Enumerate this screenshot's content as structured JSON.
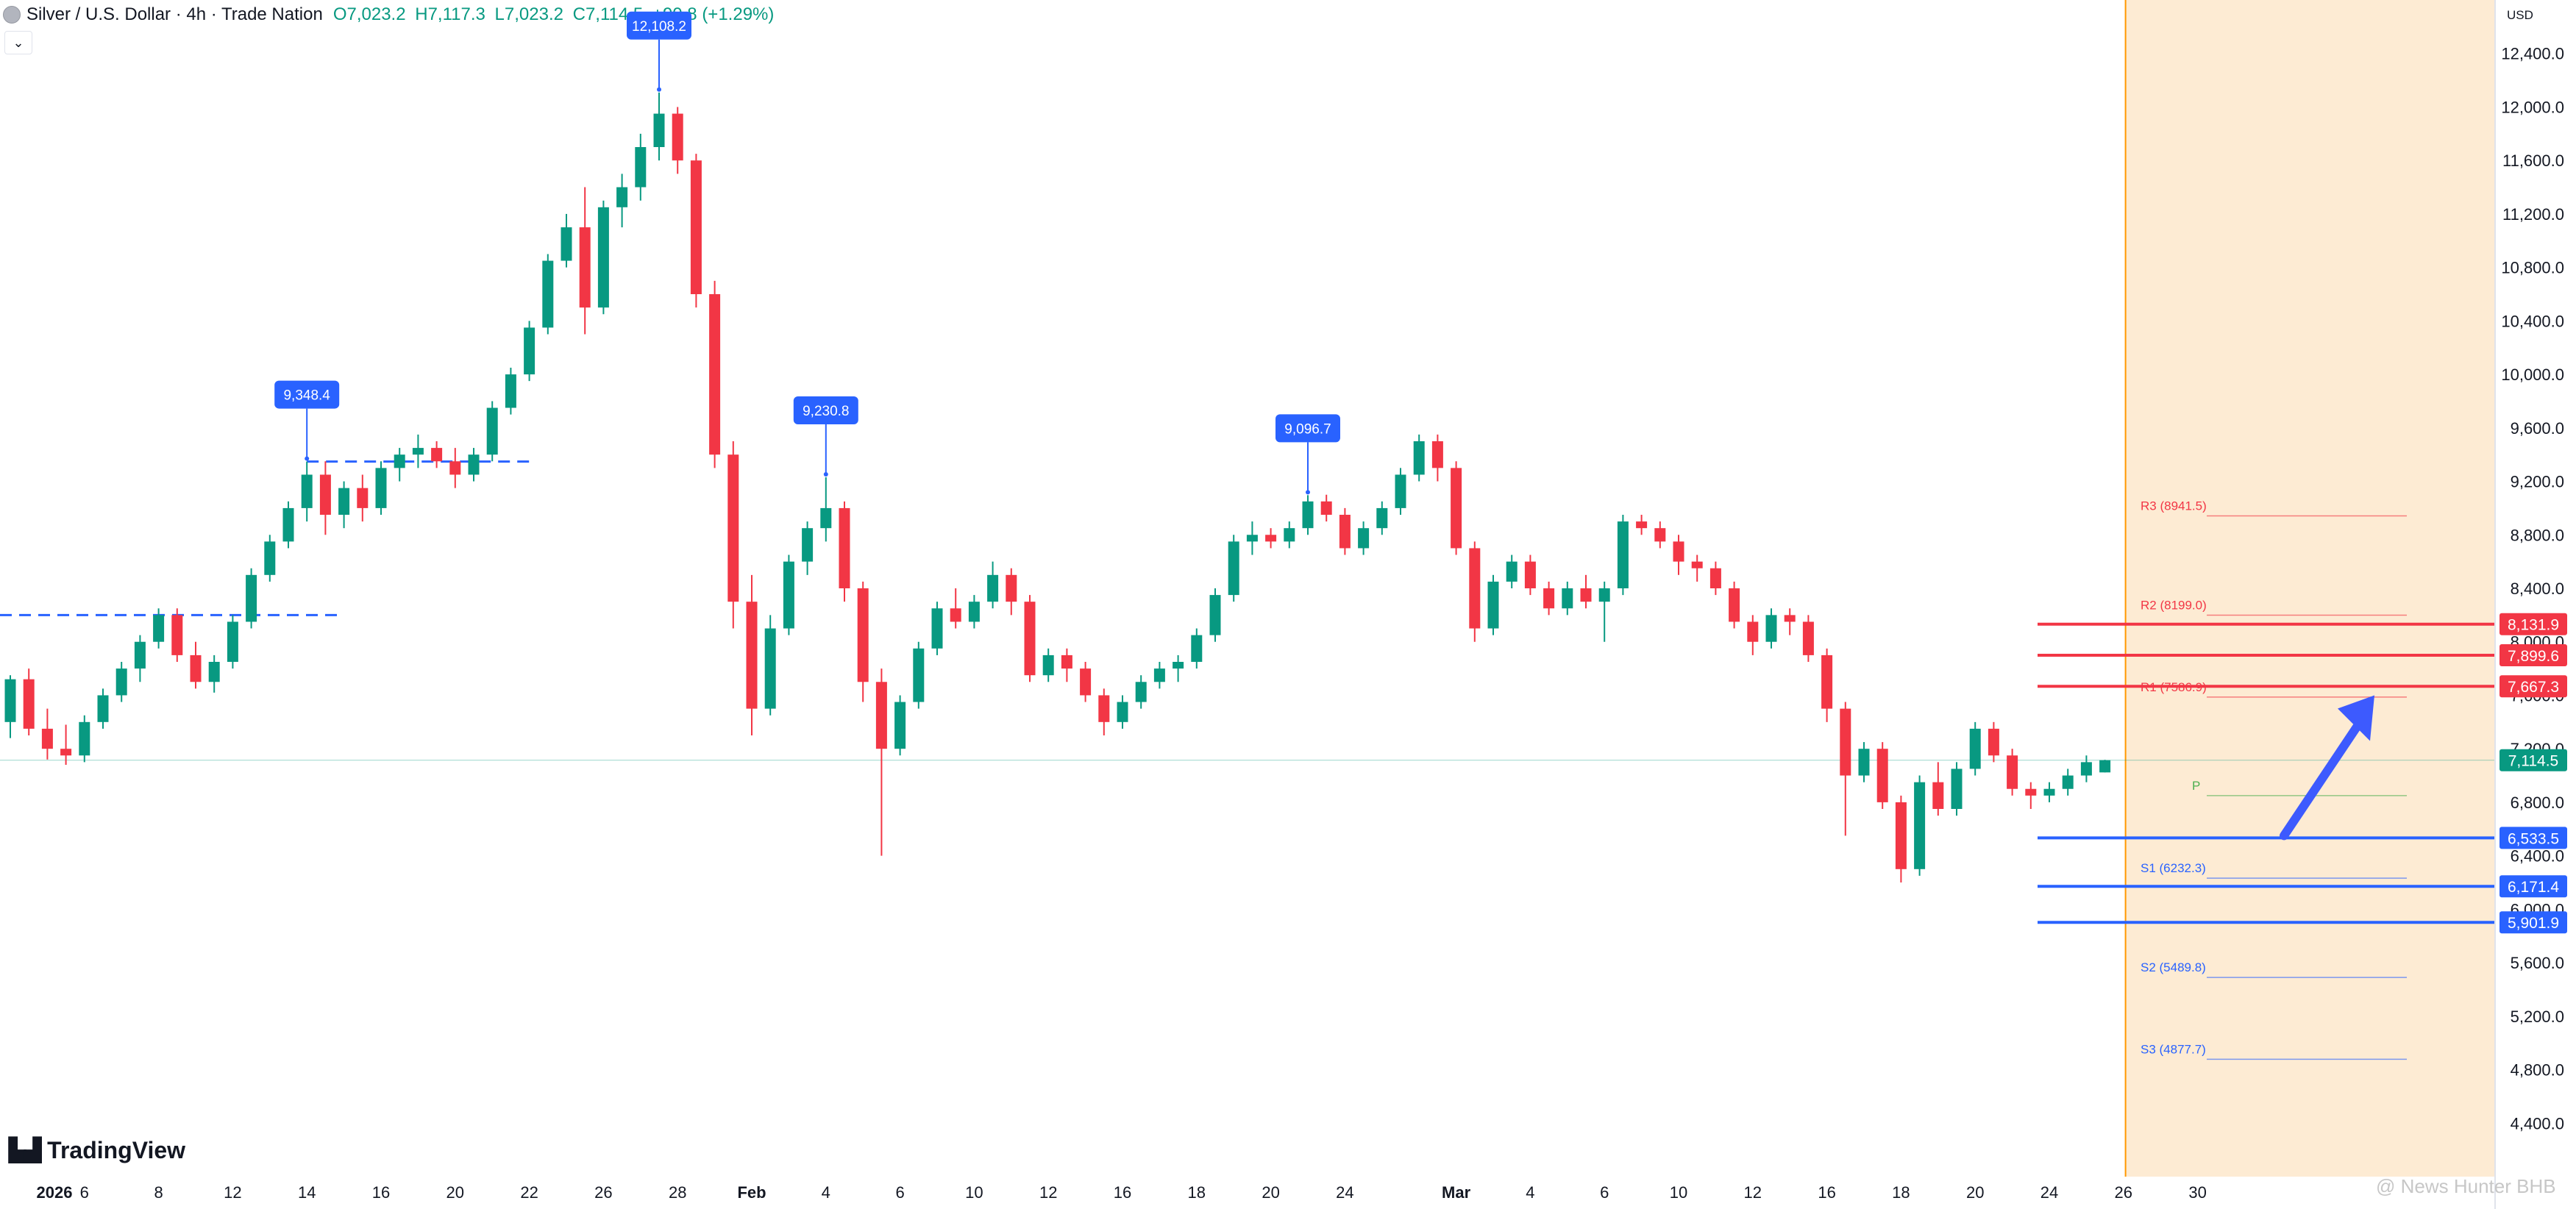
{
  "header": {
    "title": "Silver / U.S. Dollar · 4h · Trade Nation",
    "ohlc": {
      "open": "O7,023.2",
      "high": "H7,117.3",
      "low": "L7,023.2",
      "close": "C7,114.5",
      "change": "+90.8 (+1.29%)"
    }
  },
  "brand": {
    "logo_text": "TradingView",
    "watermark": "@ News Hunter BHB"
  },
  "colors": {
    "up": "#089981",
    "down": "#f23645",
    "support": "#2962ff",
    "resistance": "#f23645",
    "highlight": "#fdebd3",
    "pivot": "#4caf50"
  },
  "chart_data": {
    "type": "candlestick",
    "currency": "USD",
    "price_axis": {
      "min": 4000,
      "max": 12800,
      "ticks": [
        4400,
        4800,
        5200,
        5600,
        6000,
        6400,
        6800,
        7200,
        7600,
        8000,
        8400,
        8800,
        9200,
        9600,
        10000,
        10400,
        10800,
        11200,
        11600,
        12000,
        12400
      ]
    },
    "time_axis": {
      "labels": [
        "2026",
        "6",
        "8",
        "12",
        "14",
        "16",
        "20",
        "22",
        "26",
        "28",
        "Feb",
        "4",
        "6",
        "10",
        "12",
        "16",
        "18",
        "20",
        "24",
        "Mar",
        "4",
        "6",
        "10",
        "12",
        "16",
        "18",
        "20",
        "24",
        "26",
        "30"
      ],
      "label_positions": [
        0,
        4,
        8,
        12,
        16,
        20,
        24,
        28,
        32,
        36,
        40,
        44,
        48,
        52,
        56,
        60,
        64,
        68,
        72,
        78,
        82,
        86,
        90,
        94,
        98,
        102,
        106,
        110,
        114,
        118
      ]
    },
    "candles": [
      [
        7400,
        7750,
        7280,
        7720
      ],
      [
        7720,
        7800,
        7300,
        7350
      ],
      [
        7350,
        7500,
        7120,
        7200
      ],
      [
        7200,
        7380,
        7080,
        7150
      ],
      [
        7150,
        7450,
        7100,
        7400
      ],
      [
        7400,
        7650,
        7350,
        7600
      ],
      [
        7600,
        7850,
        7550,
        7800
      ],
      [
        7800,
        8050,
        7700,
        8000
      ],
      [
        8000,
        8250,
        7950,
        8200
      ],
      [
        8200,
        8250,
        7850,
        7900
      ],
      [
        7900,
        8000,
        7650,
        7700
      ],
      [
        7700,
        7900,
        7620,
        7850
      ],
      [
        7850,
        8200,
        7800,
        8150
      ],
      [
        8150,
        8550,
        8100,
        8500
      ],
      [
        8500,
        8800,
        8450,
        8750
      ],
      [
        8750,
        9050,
        8700,
        9000
      ],
      [
        9000,
        9348.4,
        8900,
        9250
      ],
      [
        9250,
        9350,
        8800,
        8950
      ],
      [
        8950,
        9200,
        8850,
        9150
      ],
      [
        9150,
        9250,
        8900,
        9000
      ],
      [
        9000,
        9350,
        8950,
        9300
      ],
      [
        9300,
        9450,
        9200,
        9400
      ],
      [
        9400,
        9550,
        9300,
        9450
      ],
      [
        9450,
        9500,
        9300,
        9350
      ],
      [
        9350,
        9450,
        9150,
        9250
      ],
      [
        9250,
        9450,
        9200,
        9400
      ],
      [
        9400,
        9800,
        9350,
        9750
      ],
      [
        9750,
        10050,
        9700,
        10000
      ],
      [
        10000,
        10400,
        9950,
        10350
      ],
      [
        10350,
        10900,
        10300,
        10850
      ],
      [
        10850,
        11200,
        10800,
        11100
      ],
      [
        11100,
        11400,
        10300,
        10500
      ],
      [
        10500,
        11300,
        10450,
        11250
      ],
      [
        11250,
        11500,
        11100,
        11400
      ],
      [
        11400,
        11800,
        11300,
        11700
      ],
      [
        11700,
        12108.2,
        11600,
        11950
      ],
      [
        11950,
        12000,
        11500,
        11600
      ],
      [
        11600,
        11650,
        10500,
        10600
      ],
      [
        10600,
        10700,
        9300,
        9400
      ],
      [
        9400,
        9500,
        8100,
        8300
      ],
      [
        8300,
        8500,
        7300,
        7500
      ],
      [
        7500,
        8200,
        7450,
        8100
      ],
      [
        8100,
        8650,
        8050,
        8600
      ],
      [
        8600,
        8900,
        8500,
        8850
      ],
      [
        8850,
        9230.8,
        8750,
        9000
      ],
      [
        9000,
        9050,
        8300,
        8400
      ],
      [
        8400,
        8450,
        7550,
        7700
      ],
      [
        7700,
        7800,
        6400,
        7200
      ],
      [
        7200,
        7600,
        7150,
        7550
      ],
      [
        7550,
        8000,
        7500,
        7950
      ],
      [
        7950,
        8300,
        7900,
        8250
      ],
      [
        8250,
        8400,
        8100,
        8150
      ],
      [
        8150,
        8350,
        8100,
        8300
      ],
      [
        8300,
        8600,
        8250,
        8500
      ],
      [
        8500,
        8550,
        8200,
        8300
      ],
      [
        8300,
        8350,
        7700,
        7750
      ],
      [
        7750,
        7950,
        7700,
        7900
      ],
      [
        7900,
        7950,
        7700,
        7800
      ],
      [
        7800,
        7850,
        7550,
        7600
      ],
      [
        7600,
        7650,
        7300,
        7400
      ],
      [
        7400,
        7600,
        7350,
        7550
      ],
      [
        7550,
        7750,
        7500,
        7700
      ],
      [
        7700,
        7850,
        7650,
        7800
      ],
      [
        7800,
        7900,
        7700,
        7850
      ],
      [
        7850,
        8100,
        7800,
        8050
      ],
      [
        8050,
        8400,
        8000,
        8350
      ],
      [
        8350,
        8800,
        8300,
        8750
      ],
      [
        8750,
        8900,
        8650,
        8800
      ],
      [
        8800,
        8850,
        8700,
        8750
      ],
      [
        8750,
        8900,
        8700,
        8850
      ],
      [
        8850,
        9096.7,
        8800,
        9050
      ],
      [
        9050,
        9100,
        8900,
        8950
      ],
      [
        8950,
        9000,
        8650,
        8700
      ],
      [
        8700,
        8900,
        8650,
        8850
      ],
      [
        8850,
        9050,
        8800,
        9000
      ],
      [
        9000,
        9300,
        8950,
        9250
      ],
      [
        9250,
        9550,
        9200,
        9500
      ],
      [
        9500,
        9550,
        9200,
        9300
      ],
      [
        9300,
        9350,
        8650,
        8700
      ],
      [
        8700,
        8750,
        8000,
        8100
      ],
      [
        8100,
        8500,
        8050,
        8450
      ],
      [
        8450,
        8650,
        8400,
        8600
      ],
      [
        8600,
        8650,
        8350,
        8400
      ],
      [
        8400,
        8450,
        8200,
        8250
      ],
      [
        8250,
        8450,
        8200,
        8400
      ],
      [
        8400,
        8500,
        8250,
        8300
      ],
      [
        8300,
        8450,
        8000,
        8400
      ],
      [
        8400,
        8950,
        8350,
        8900
      ],
      [
        8900,
        8950,
        8800,
        8850
      ],
      [
        8850,
        8900,
        8700,
        8750
      ],
      [
        8750,
        8800,
        8500,
        8600
      ],
      [
        8600,
        8650,
        8450,
        8550
      ],
      [
        8550,
        8600,
        8350,
        8400
      ],
      [
        8400,
        8450,
        8100,
        8150
      ],
      [
        8150,
        8200,
        7900,
        8000
      ],
      [
        8000,
        8250,
        7950,
        8200
      ],
      [
        8200,
        8250,
        8050,
        8150
      ],
      [
        8150,
        8200,
        7850,
        7900
      ],
      [
        7900,
        7950,
        7400,
        7500
      ],
      [
        7500,
        7550,
        6550,
        7000
      ],
      [
        7000,
        7250,
        6950,
        7200
      ],
      [
        7200,
        7250,
        6750,
        6800
      ],
      [
        6800,
        6850,
        6200,
        6300
      ],
      [
        6300,
        7000,
        6250,
        6950
      ],
      [
        6950,
        7100,
        6700,
        6750
      ],
      [
        6750,
        7100,
        6700,
        7050
      ],
      [
        7050,
        7400,
        7000,
        7350
      ],
      [
        7350,
        7400,
        7100,
        7150
      ],
      [
        7150,
        7200,
        6850,
        6900
      ],
      [
        6900,
        6950,
        6750,
        6850
      ],
      [
        6850,
        6950,
        6800,
        6900
      ],
      [
        6900,
        7050,
        6850,
        7000
      ],
      [
        7000,
        7150,
        6950,
        7100
      ],
      [
        7023.2,
        7117.3,
        7023.2,
        7114.5
      ]
    ],
    "price_labels": [
      {
        "value": 12108.2,
        "label": "12,108.2",
        "candle": 35
      },
      {
        "value": 9348.4,
        "label": "9,348.4",
        "candle": 16
      },
      {
        "value": 9230.8,
        "label": "9,230.8",
        "candle": 44
      },
      {
        "value": 9096.7,
        "label": "9,096.7",
        "candle": 70
      }
    ],
    "dashed_levels": [
      {
        "value": 8200,
        "from_candle": 0,
        "to_candle": 18
      },
      {
        "value": 9348.4,
        "from_candle": 16,
        "to_candle": 28
      }
    ],
    "horizontal_levels": [
      {
        "value": 8131.9,
        "label": "8,131.9",
        "kind": "resistance"
      },
      {
        "value": 7899.6,
        "label": "7,899.6",
        "kind": "resistance"
      },
      {
        "value": 7667.3,
        "label": "7,667.3",
        "kind": "resistance"
      },
      {
        "value": 6533.5,
        "label": "6,533.5",
        "kind": "support"
      },
      {
        "value": 6171.4,
        "label": "6,171.4",
        "kind": "support"
      },
      {
        "value": 5901.9,
        "label": "5,901.9",
        "kind": "support"
      }
    ],
    "pivots": [
      {
        "name": "R3 (8941.5)",
        "value": 8941.5,
        "kind": "resistance"
      },
      {
        "name": "R2 (8199.0)",
        "value": 8199.0,
        "kind": "resistance"
      },
      {
        "name": "R1 (7586.9)",
        "value": 7586.9,
        "kind": "resistance"
      },
      {
        "name": "P",
        "value": 6850,
        "kind": "pivot"
      },
      {
        "name": "S1 (6232.3)",
        "value": 6232.3,
        "kind": "support"
      },
      {
        "name": "S2 (5489.8)",
        "value": 5489.8,
        "kind": "support"
      },
      {
        "name": "S3 (4877.7)",
        "value": 4877.7,
        "kind": "support"
      }
    ],
    "last_price": {
      "value": 7114.5,
      "label": "7,114.5"
    },
    "forecast_arrow": {
      "from": 6550,
      "to": 7600
    },
    "highlight_zone": "future"
  }
}
